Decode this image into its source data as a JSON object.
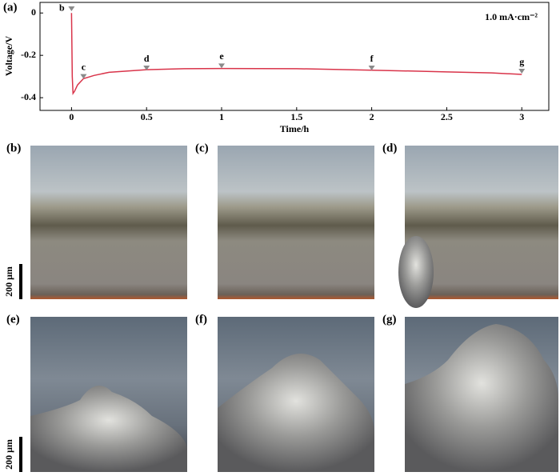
{
  "chart_data": {
    "type": "line",
    "title": "(a)",
    "xlabel": "Time/h",
    "ylabel": "Voltage/V",
    "annotation": "1.0 mA·cm⁻²",
    "x": [
      0,
      0.005,
      0.01,
      0.02,
      0.04,
      0.08,
      0.15,
      0.25,
      0.5,
      0.75,
      1,
      1.5,
      2,
      2.5,
      2.8,
      3
    ],
    "series": [
      {
        "color": "#d9344a",
        "values": [
          0,
          -0.3,
          -0.38,
          -0.37,
          -0.34,
          -0.31,
          -0.295,
          -0.28,
          -0.268,
          -0.263,
          -0.262,
          -0.263,
          -0.27,
          -0.278,
          -0.283,
          -0.29
        ]
      }
    ],
    "markers": [
      {
        "label": "b",
        "x": 0,
        "y": 0.02
      },
      {
        "label": "c",
        "x": 0.08,
        "y": -0.3
      },
      {
        "label": "d",
        "x": 0.5,
        "y": -0.26
      },
      {
        "label": "e",
        "x": 1,
        "y": -0.25
      },
      {
        "label": "f",
        "x": 2,
        "y": -0.26
      },
      {
        "label": "g",
        "x": 3,
        "y": -0.275
      }
    ],
    "marker_color": "#8a8a8a",
    "xlim": [
      -0.21,
      3.18
    ],
    "ylim": [
      -0.46,
      0.05
    ],
    "xticks": [
      0,
      0.5,
      1,
      1.5,
      2,
      2.5,
      3
    ],
    "yticks": [
      -0.4,
      -0.2,
      0
    ]
  },
  "panels": [
    {
      "label": "(b)"
    },
    {
      "label": "(c)"
    },
    {
      "label": "(d)"
    },
    {
      "label": "(e)"
    },
    {
      "label": "(f)"
    },
    {
      "label": "(g)"
    }
  ],
  "scale_bars": [
    "200 μm",
    "200 μm"
  ]
}
